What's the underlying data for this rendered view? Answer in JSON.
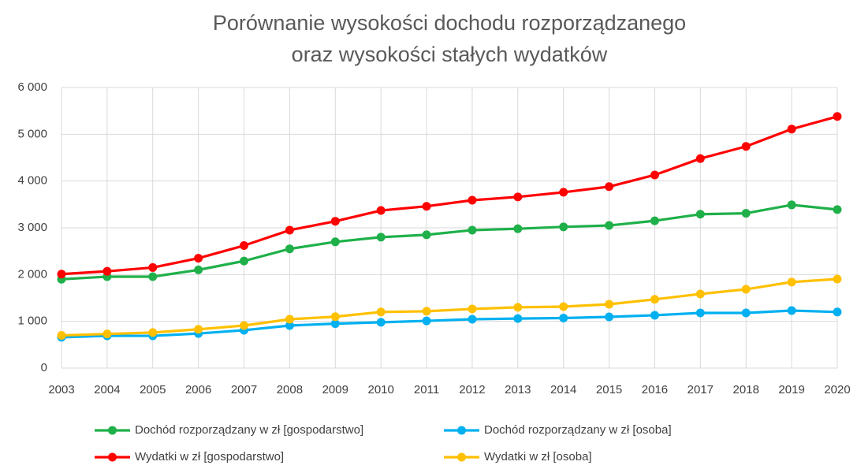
{
  "chart_data": {
    "type": "line",
    "title": [
      "Porównanie wysokości dochodu rozporządzanego",
      "oraz wysokości stałych wydatków"
    ],
    "categories": [
      "2003",
      "2004",
      "2005",
      "2006",
      "2007",
      "2008",
      "2009",
      "2010",
      "2011",
      "2012",
      "2013",
      "2014",
      "2015",
      "2016",
      "2017",
      "2018",
      "2019",
      "2020"
    ],
    "series": [
      {
        "name": "Dochód rozporządzany w zł [gospodarstwo]",
        "color": "#1fb04a",
        "values": [
          1900,
          1955,
          1955,
          2100,
          2290,
          2550,
          2700,
          2800,
          2850,
          2950,
          2980,
          3020,
          3050,
          3150,
          3290,
          3310,
          3490,
          3390
        ]
      },
      {
        "name": "Dochód rozporządzany w zł [osoba]",
        "color": "#00b0f0",
        "values": [
          660,
          690,
          690,
          740,
          810,
          910,
          950,
          980,
          1010,
          1045,
          1060,
          1070,
          1095,
          1130,
          1180,
          1180,
          1230,
          1200
        ]
      },
      {
        "name": "Wydatki w zł [gospodarstwo]",
        "color": "#ff0000",
        "values": [
          2010,
          2070,
          2150,
          2350,
          2620,
          2950,
          3140,
          3370,
          3460,
          3590,
          3660,
          3760,
          3880,
          4130,
          4480,
          4740,
          5110,
          5380
        ]
      },
      {
        "name": "Wydatki w zł [osoba]",
        "color": "#ffc000",
        "values": [
          700,
          730,
          760,
          830,
          910,
          1045,
          1100,
          1200,
          1215,
          1265,
          1300,
          1315,
          1365,
          1470,
          1585,
          1685,
          1840,
          1905
        ]
      }
    ],
    "ylim": [
      0,
      6000
    ],
    "yticks": [
      0,
      {
        "value": 1000,
        "label": "1 000"
      },
      {
        "value": 2000,
        "label": "2 000"
      },
      {
        "value": 3000,
        "label": "3 000"
      },
      {
        "value": 4000,
        "label": "4 000"
      },
      {
        "value": 5000,
        "label": "5 000"
      },
      {
        "value": 6000,
        "label": "6 000"
      }
    ],
    "grid": true,
    "legend": "bottom"
  }
}
